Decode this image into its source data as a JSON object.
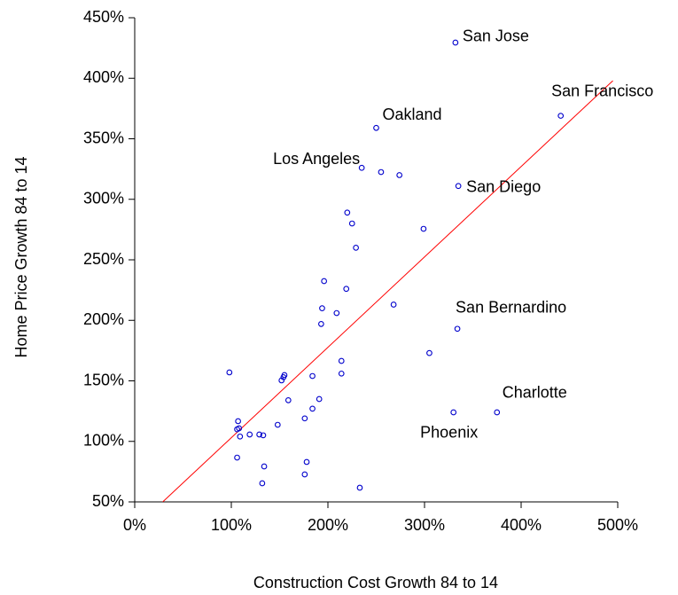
{
  "chart_data": {
    "type": "scatter",
    "x_label": "Construction Cost Growth 84 to 14",
    "y_label": "Home Price Growth 84 to 14",
    "xlim": [
      0,
      500
    ],
    "ylim": [
      50,
      450
    ],
    "xticks": [
      {
        "value": 0,
        "label": "0%"
      },
      {
        "value": 100,
        "label": "100%"
      },
      {
        "value": 200,
        "label": "200%"
      },
      {
        "value": 300,
        "label": "300%"
      },
      {
        "value": 400,
        "label": "400%"
      },
      {
        "value": 500,
        "label": "500%"
      }
    ],
    "yticks": [
      {
        "value": 50,
        "label": "50%"
      },
      {
        "value": 100,
        "label": "100%"
      },
      {
        "value": 150,
        "label": "150%"
      },
      {
        "value": 200,
        "label": "200%"
      },
      {
        "value": 250,
        "label": "250%"
      },
      {
        "value": 300,
        "label": "300%"
      },
      {
        "value": 350,
        "label": "350%"
      },
      {
        "value": 400,
        "label": "400%"
      },
      {
        "value": 450,
        "label": "450%"
      }
    ],
    "series": [
      {
        "color": "#0000cc",
        "x": [
          332,
          441,
          250,
          235,
          335,
          334,
          330,
          375,
          255,
          274,
          220,
          225,
          299,
          229,
          196,
          219,
          268,
          194,
          209,
          193,
          305,
          214,
          98,
          155,
          184,
          214,
          154,
          152,
          159,
          191,
          107,
          184,
          176,
          148,
          108,
          106,
          119,
          109,
          129,
          133,
          106,
          178,
          134,
          176,
          132,
          233
        ],
        "y": [
          429.5,
          369,
          359,
          326,
          311,
          193,
          124,
          124,
          322.5,
          320,
          289,
          280,
          275.6,
          260,
          232.4,
          226,
          213,
          210,
          206,
          197,
          173,
          166.5,
          157,
          154.8,
          154,
          156,
          153,
          150.4,
          134,
          135,
          116.7,
          127,
          119,
          113.7,
          110.8,
          110,
          105.7,
          104,
          105.7,
          105,
          86.6,
          83,
          79.3,
          72.7,
          65.4,
          61.7
        ],
        "labels": [
          "San Jose",
          "San Francisco",
          "Oakland",
          "Los Angeles",
          "San Diego",
          "San Bernardino",
          "Phoenix",
          "Charlotte",
          null,
          null,
          null,
          null,
          null,
          null,
          null,
          null,
          null,
          null,
          null,
          null,
          null,
          null,
          null,
          null,
          null,
          null,
          null,
          null,
          null,
          null,
          null,
          null,
          null,
          null,
          null,
          null,
          null,
          null,
          null,
          null,
          null,
          null,
          null,
          null,
          null,
          null
        ]
      }
    ],
    "trendline": {
      "color": "#ff0000",
      "x": [
        29,
        495
      ],
      "y": [
        50,
        398
      ]
    }
  }
}
